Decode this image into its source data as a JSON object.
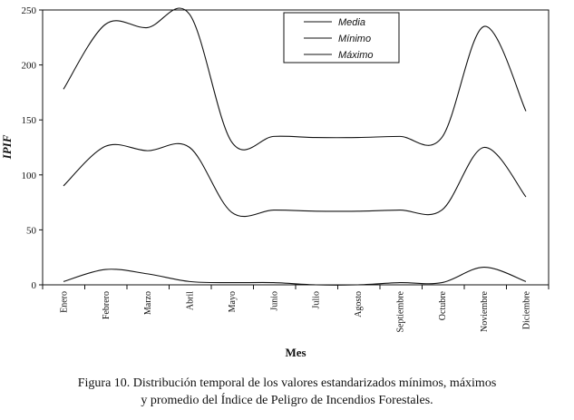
{
  "chart_data": {
    "type": "line",
    "title": "",
    "xlabel": "Mes",
    "ylabel": "IPIF",
    "ylim": [
      0,
      250
    ],
    "yticks": [
      0,
      50,
      100,
      150,
      200,
      250
    ],
    "categories": [
      "Enero",
      "Febrero",
      "Marzo",
      "Abril",
      "Mayo",
      "Junio",
      "Julio",
      "Agosto",
      "Septiembre",
      "Octubre",
      "Noviembre",
      "Diciembre"
    ],
    "series": [
      {
        "name": "Media",
        "values": [
          90,
          126,
          122,
          125,
          66,
          68,
          67,
          67,
          68,
          68,
          125,
          80
        ]
      },
      {
        "name": "Mínimo",
        "values": [
          3,
          14,
          10,
          3,
          2,
          2,
          0,
          0,
          2,
          2,
          16,
          3
        ]
      },
      {
        "name": "Máximo",
        "values": [
          178,
          237,
          234,
          246,
          130,
          135,
          134,
          134,
          135,
          134,
          235,
          158
        ]
      }
    ],
    "legend_position": "top-right",
    "grid": false,
    "line_color": "#111111"
  },
  "caption": {
    "line1": "Figura 10. Distribución temporal de los valores estandarizados mínimos, máximos",
    "line2": "y promedio del Índice de Peligro de Incendios Forestales."
  }
}
